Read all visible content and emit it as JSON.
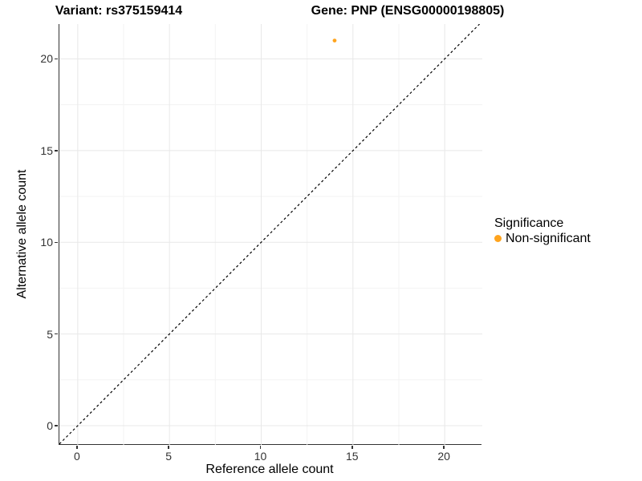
{
  "titles": {
    "variant": "Variant: rs375159414",
    "gene": "Gene: PNP (ENSG00000198805)"
  },
  "axes": {
    "x": {
      "label": "Reference allele count",
      "tick_labels": [
        "0",
        "5",
        "10",
        "15",
        "20"
      ]
    },
    "y": {
      "label": "Alternative allele count",
      "tick_labels": [
        "0",
        "5",
        "10",
        "15",
        "20"
      ]
    }
  },
  "legend": {
    "title": "Significance",
    "items": [
      {
        "label": "Non-significant",
        "color": "#FFA41E",
        "marker": "circle"
      }
    ]
  },
  "colors": {
    "grid_major": "#e8e8e8",
    "grid_minor": "#f3f3f3",
    "axis_line": "#333333",
    "tick_label": "#333333",
    "identity_line": "#000000",
    "point": "#FFA41E"
  },
  "chart_data": {
    "type": "scatter",
    "title": "Variant: rs375159414 / Gene: PNP (ENSG00000198805)",
    "xlabel": "Reference allele count",
    "ylabel": "Alternative allele count",
    "xlim": [
      -1.0,
      22.05
    ],
    "ylim": [
      -1.05,
      21.9
    ],
    "x_ticks": [
      0,
      5,
      10,
      15,
      20
    ],
    "y_ticks": [
      0,
      5,
      10,
      15,
      20
    ],
    "x_minor_ticks": [
      2.5,
      7.5,
      12.5,
      17.5
    ],
    "y_minor_ticks": [
      2.5,
      7.5,
      12.5,
      17.5
    ],
    "grid": "major+minor",
    "legend_position": "right",
    "series": [
      {
        "name": "Non-significant",
        "color": "#FFA41E",
        "points": [
          {
            "x": 14,
            "y": 21
          }
        ]
      }
    ],
    "reference_line": {
      "type": "identity y=x",
      "style": "dashed",
      "color": "#000000"
    }
  }
}
